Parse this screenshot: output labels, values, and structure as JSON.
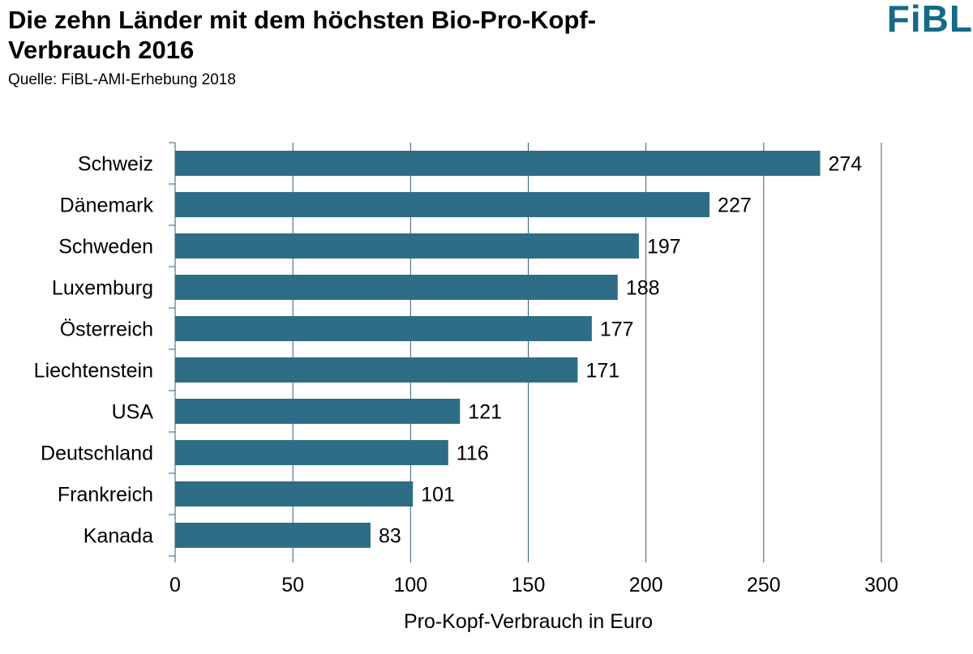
{
  "title": "Die zehn Länder mit dem höchsten Bio-Pro-Kopf-Verbrauch 2016",
  "source": "Quelle: FiBL-AMI-Erhebung 2018",
  "logo": "FiBL",
  "colors": {
    "bar": "#2e6d86",
    "grid": "#2e5f78",
    "logo": "#146a88"
  },
  "chart_data": {
    "type": "bar",
    "orientation": "horizontal",
    "categories": [
      "Schweiz",
      "Dänemark",
      "Schweden",
      "Luxemburg",
      "Österreich",
      "Liechtenstein",
      "USA",
      "Deutschland",
      "Frankreich",
      "Kanada"
    ],
    "values": [
      274,
      227,
      197,
      188,
      177,
      171,
      121,
      116,
      101,
      83
    ],
    "value_labels": [
      "274",
      "227",
      "197",
      "188",
      "177",
      "171",
      "121",
      "116",
      "101",
      "83"
    ],
    "xlabel": "Pro-Kopf-Verbrauch in Euro",
    "ylabel": "",
    "xlim": [
      0,
      300
    ],
    "xticks": [
      0,
      50,
      100,
      150,
      200,
      250,
      300
    ],
    "xtick_labels": [
      "0",
      "50",
      "100",
      "150",
      "200",
      "250",
      "300"
    ],
    "grid": "vertical"
  }
}
